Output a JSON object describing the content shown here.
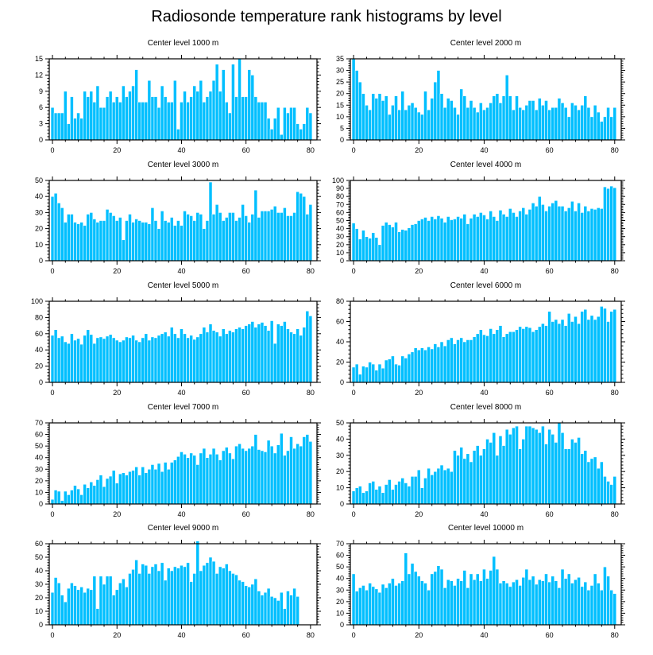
{
  "title": "Radiosonde temperature rank histograms by level",
  "bar_color": "#00bfff",
  "bar_stroke": "#ffffff",
  "chart_data": [
    {
      "type": "bar",
      "title": "Center level 1000 m",
      "x_start": 0,
      "xlim": [
        -1,
        82
      ],
      "ylim": [
        0,
        15
      ],
      "xticks": [
        0,
        20,
        40,
        60,
        80
      ],
      "yticks": [
        0,
        3,
        6,
        9,
        12,
        15
      ],
      "values": [
        6,
        5,
        5,
        5,
        9,
        3,
        8,
        4,
        5,
        4,
        9,
        8,
        9,
        7,
        10,
        6,
        6,
        8,
        9,
        7,
        8,
        7,
        10,
        8,
        9,
        10,
        13,
        7,
        7,
        7,
        11,
        8,
        8,
        6,
        10,
        8,
        7,
        7,
        11,
        2,
        7,
        9,
        7,
        8,
        10,
        9,
        11,
        7,
        8,
        9,
        11,
        14,
        9,
        13,
        7,
        5,
        14,
        8,
        15,
        8,
        8,
        13,
        12,
        8,
        7,
        7,
        7,
        4,
        2,
        4,
        6,
        1,
        6,
        5,
        6,
        6,
        3,
        2,
        3,
        6,
        5
      ]
    },
    {
      "type": "bar",
      "title": "Center level 2000 m",
      "x_start": 0,
      "xlim": [
        -1,
        82
      ],
      "ylim": [
        0,
        35
      ],
      "xticks": [
        0,
        20,
        40,
        60,
        80
      ],
      "yticks": [
        0,
        5,
        10,
        15,
        20,
        25,
        30,
        35
      ],
      "values": [
        35,
        30,
        25,
        20,
        15,
        13,
        20,
        18,
        20,
        17,
        19,
        11,
        15,
        19,
        13,
        21,
        13,
        15,
        16,
        14,
        12,
        11,
        21,
        13,
        18,
        25,
        30,
        20,
        14,
        18,
        17,
        14,
        11,
        22,
        19,
        14,
        17,
        14,
        12,
        16,
        13,
        14,
        16,
        19,
        20,
        16,
        19,
        28,
        19,
        13,
        19,
        14,
        13,
        15,
        17,
        17,
        13,
        18,
        15,
        17,
        13,
        14,
        14,
        18,
        16,
        14,
        10,
        16,
        15,
        13,
        15,
        19,
        14,
        10,
        15,
        12,
        8,
        10,
        14,
        10,
        14
      ]
    },
    {
      "type": "bar",
      "title": "Center level 3000 m",
      "x_start": 0,
      "xlim": [
        -1,
        82
      ],
      "ylim": [
        0,
        50
      ],
      "xticks": [
        0,
        20,
        40,
        60,
        80
      ],
      "yticks": [
        0,
        10,
        20,
        30,
        40,
        50
      ],
      "values": [
        40,
        42,
        36,
        33,
        24,
        29,
        29,
        24,
        23,
        24,
        22,
        29,
        30,
        26,
        24,
        25,
        25,
        32,
        30,
        28,
        25,
        27,
        13,
        25,
        29,
        24,
        26,
        25,
        24,
        24,
        23,
        33,
        25,
        20,
        31,
        25,
        24,
        27,
        22,
        25,
        22,
        31,
        29,
        28,
        25,
        30,
        29,
        20,
        25,
        49,
        29,
        35,
        30,
        25,
        27,
        30,
        30,
        25,
        27,
        35,
        28,
        24,
        29,
        44,
        27,
        31,
        31,
        31,
        32,
        34,
        30,
        30,
        33,
        28,
        28,
        30,
        43,
        42,
        40,
        29,
        35
      ]
    },
    {
      "type": "bar",
      "title": "Center level 4000 m",
      "x_start": 0,
      "xlim": [
        -1,
        82
      ],
      "ylim": [
        0,
        100
      ],
      "xticks": [
        0,
        20,
        40,
        60,
        80
      ],
      "yticks": [
        0,
        10,
        20,
        30,
        40,
        50,
        60,
        70,
        80,
        90,
        100
      ],
      "values": [
        47,
        40,
        27,
        38,
        30,
        28,
        35,
        29,
        20,
        44,
        48,
        45,
        42,
        48,
        36,
        39,
        38,
        41,
        45,
        46,
        50,
        52,
        54,
        50,
        55,
        52,
        56,
        53,
        48,
        55,
        51,
        52,
        55,
        53,
        58,
        46,
        53,
        58,
        55,
        60,
        57,
        52,
        62,
        55,
        50,
        63,
        58,
        55,
        65,
        60,
        55,
        62,
        66,
        58,
        64,
        72,
        68,
        80,
        70,
        62,
        68,
        72,
        75,
        68,
        68,
        62,
        66,
        74,
        62,
        72,
        60,
        68,
        62,
        65,
        64,
        66,
        65,
        92,
        90,
        93,
        91
      ]
    },
    {
      "type": "bar",
      "title": "Center level 5000 m",
      "x_start": 0,
      "xlim": [
        -1,
        82
      ],
      "ylim": [
        0,
        100
      ],
      "xticks": [
        0,
        20,
        40,
        60,
        80
      ],
      "yticks": [
        0,
        20,
        40,
        60,
        80,
        100
      ],
      "values": [
        58,
        65,
        55,
        57,
        50,
        48,
        60,
        52,
        54,
        47,
        58,
        65,
        59,
        48,
        55,
        56,
        54,
        57,
        59,
        55,
        52,
        50,
        52,
        56,
        55,
        58,
        52,
        50,
        55,
        60,
        52,
        56,
        55,
        58,
        60,
        62,
        57,
        68,
        60,
        55,
        66,
        60,
        55,
        58,
        53,
        56,
        60,
        68,
        62,
        72,
        64,
        62,
        57,
        66,
        60,
        64,
        62,
        66,
        68,
        66,
        70,
        72,
        75,
        68,
        72,
        74,
        70,
        64,
        76,
        48,
        72,
        70,
        75,
        66,
        62,
        60,
        66,
        58,
        68,
        88,
        82
      ]
    },
    {
      "type": "bar",
      "title": "Center level 6000 m",
      "x_start": 0,
      "xlim": [
        -1,
        82
      ],
      "ylim": [
        0,
        80
      ],
      "xticks": [
        0,
        20,
        40,
        60,
        80
      ],
      "yticks": [
        0,
        20,
        40,
        60,
        80
      ],
      "values": [
        15,
        18,
        8,
        16,
        15,
        20,
        18,
        12,
        18,
        14,
        22,
        23,
        26,
        18,
        17,
        26,
        24,
        28,
        30,
        34,
        32,
        34,
        32,
        35,
        33,
        38,
        35,
        40,
        36,
        42,
        44,
        38,
        42,
        44,
        40,
        42,
        42,
        45,
        48,
        52,
        47,
        46,
        53,
        48,
        52,
        56,
        45,
        48,
        50,
        50,
        52,
        55,
        53,
        55,
        54,
        50,
        52,
        55,
        58,
        56,
        70,
        60,
        62,
        58,
        62,
        56,
        68,
        60,
        65,
        58,
        70,
        72,
        62,
        66,
        62,
        65,
        75,
        73,
        60,
        70,
        72
      ]
    },
    {
      "type": "bar",
      "title": "Center level 7000 m",
      "x_start": 0,
      "xlim": [
        -1,
        82
      ],
      "ylim": [
        0,
        70
      ],
      "xticks": [
        0,
        20,
        40,
        60,
        80
      ],
      "yticks": [
        0,
        10,
        20,
        30,
        40,
        50,
        60,
        70
      ],
      "values": [
        4,
        12,
        11,
        3,
        11,
        8,
        12,
        16,
        13,
        8,
        17,
        14,
        19,
        16,
        21,
        25,
        15,
        22,
        24,
        29,
        18,
        26,
        27,
        25,
        28,
        29,
        32,
        25,
        32,
        27,
        30,
        34,
        30,
        35,
        28,
        36,
        30,
        36,
        38,
        41,
        45,
        43,
        40,
        44,
        42,
        34,
        44,
        48,
        40,
        43,
        48,
        43,
        38,
        46,
        49,
        44,
        39,
        50,
        52,
        48,
        46,
        48,
        50,
        60,
        47,
        46,
        45,
        55,
        50,
        44,
        51,
        61,
        42,
        46,
        58,
        48,
        52,
        50,
        58,
        60,
        54
      ]
    },
    {
      "type": "bar",
      "title": "Center level 8000 m",
      "x_start": 0,
      "xlim": [
        -1,
        82
      ],
      "ylim": [
        0,
        50
      ],
      "xticks": [
        0,
        20,
        40,
        60,
        80
      ],
      "yticks": [
        0,
        10,
        20,
        30,
        40,
        50
      ],
      "values": [
        8,
        10,
        11,
        7,
        8,
        13,
        14,
        9,
        11,
        7,
        12,
        15,
        9,
        12,
        14,
        16,
        13,
        11,
        17,
        17,
        21,
        10,
        16,
        22,
        18,
        20,
        22,
        24,
        21,
        22,
        20,
        33,
        30,
        35,
        28,
        31,
        26,
        33,
        36,
        30,
        34,
        40,
        38,
        44,
        30,
        42,
        36,
        46,
        43,
        47,
        48,
        34,
        40,
        48,
        48,
        47,
        46,
        44,
        48,
        37,
        46,
        43,
        38,
        50,
        44,
        34,
        34,
        40,
        38,
        41,
        31,
        33,
        26,
        28,
        29,
        22,
        26,
        17,
        14,
        12,
        17
      ]
    },
    {
      "type": "bar",
      "title": "Center level 9000 m",
      "x_start": 0,
      "xlim": [
        -1,
        82
      ],
      "ylim": [
        0,
        60
      ],
      "xticks": [
        0,
        20,
        40,
        60,
        80
      ],
      "yticks": [
        0,
        10,
        20,
        30,
        40,
        50,
        60
      ],
      "values": [
        24,
        35,
        31,
        22,
        17,
        27,
        31,
        29,
        26,
        28,
        24,
        27,
        26,
        36,
        12,
        36,
        30,
        36,
        36,
        22,
        26,
        31,
        34,
        28,
        38,
        41,
        48,
        38,
        45,
        44,
        38,
        43,
        45,
        40,
        46,
        33,
        42,
        40,
        43,
        42,
        44,
        43,
        46,
        32,
        38,
        62,
        40,
        44,
        46,
        50,
        47,
        38,
        43,
        42,
        45,
        40,
        38,
        37,
        33,
        32,
        29,
        28,
        30,
        34,
        25,
        22,
        24,
        27,
        21,
        20,
        18,
        24,
        12,
        25,
        22,
        27,
        21
      ]
    },
    {
      "type": "bar",
      "title": "Center level 10000 m",
      "x_start": 0,
      "xlim": [
        -1,
        82
      ],
      "ylim": [
        0,
        70
      ],
      "xticks": [
        0,
        20,
        40,
        60,
        80
      ],
      "yticks": [
        0,
        10,
        20,
        30,
        40,
        50,
        60,
        70
      ],
      "values": [
        44,
        29,
        32,
        34,
        30,
        36,
        33,
        31,
        28,
        35,
        32,
        36,
        40,
        34,
        36,
        38,
        62,
        44,
        53,
        46,
        42,
        38,
        36,
        30,
        44,
        46,
        51,
        48,
        32,
        39,
        38,
        34,
        40,
        38,
        47,
        32,
        44,
        39,
        44,
        38,
        48,
        40,
        47,
        59,
        48,
        36,
        38,
        36,
        33,
        37,
        39,
        34,
        41,
        48,
        39,
        42,
        35,
        39,
        38,
        44,
        37,
        42,
        38,
        32,
        48,
        40,
        44,
        36,
        39,
        41,
        33,
        37,
        30,
        34,
        44,
        36,
        30,
        50,
        42,
        30,
        27
      ]
    }
  ]
}
